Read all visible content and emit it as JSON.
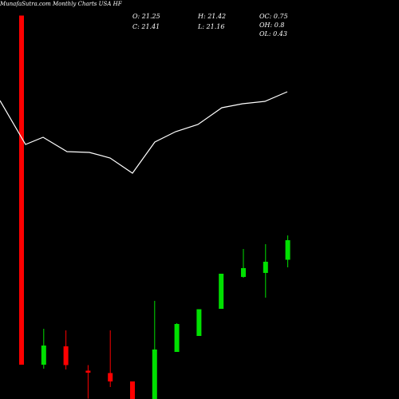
{
  "header": {
    "title": "MunafaSutra.com Monthly Charts USA HF",
    "o": "O: 21.25",
    "c": "C: 21.41",
    "h": "H: 21.42",
    "l": "L: 21.16",
    "oc": "OC: 0.75",
    "oh": "OH: 0.8",
    "ol": "OL: 0.43"
  },
  "chart_data": {
    "type": "candlestick",
    "title": "MunafaSutra.com Monthly Charts USA HF",
    "background": "#000000",
    "colors": {
      "up": "#00e000",
      "down": "#ff0000",
      "line": "#ffffff"
    },
    "price_range": [
      0,
      100
    ],
    "candles": [
      {
        "open": 96.1,
        "high": 96.1,
        "low": 8.6,
        "close": 8.6
      },
      {
        "open": 8.6,
        "high": 17.6,
        "low": 7.6,
        "close": 13.4
      },
      {
        "open": 13.2,
        "high": 17.2,
        "low": 7.4,
        "close": 8.5
      },
      {
        "open": 7.1,
        "high": 8.5,
        "low": 0.1,
        "close": 6.6
      },
      {
        "open": 6.5,
        "high": 17.2,
        "low": 3.0,
        "close": 4.4
      },
      {
        "open": 4.4,
        "high": 4.4,
        "low": 0.0,
        "close": 0.0
      },
      {
        "open": 0.0,
        "high": 24.6,
        "low": 0.0,
        "close": 12.4
      },
      {
        "open": 11.8,
        "high": 19.0,
        "low": 11.8,
        "close": 18.8
      },
      {
        "open": 15.8,
        "high": 22.5,
        "low": 15.8,
        "close": 22.5
      },
      {
        "open": 22.6,
        "high": 31.4,
        "low": 22.6,
        "close": 31.4
      },
      {
        "open": 30.6,
        "high": 37.6,
        "low": 30.4,
        "close": 32.8
      },
      {
        "open": 31.6,
        "high": 38.8,
        "low": 25.4,
        "close": 34.4
      },
      {
        "open": 34.9,
        "high": 41.0,
        "low": 33.0,
        "close": 39.8
      }
    ],
    "line": [
      [
        0,
        74.8
      ],
      [
        32,
        63.8
      ],
      [
        54,
        65.6
      ],
      [
        84,
        62.0
      ],
      [
        112,
        61.8
      ],
      [
        138,
        60.4
      ],
      [
        166,
        56.6
      ],
      [
        194,
        64.4
      ],
      [
        220,
        67.0
      ],
      [
        248,
        68.8
      ],
      [
        278,
        73.0
      ],
      [
        304,
        74.0
      ],
      [
        332,
        74.6
      ],
      [
        360,
        77.0
      ]
    ]
  }
}
